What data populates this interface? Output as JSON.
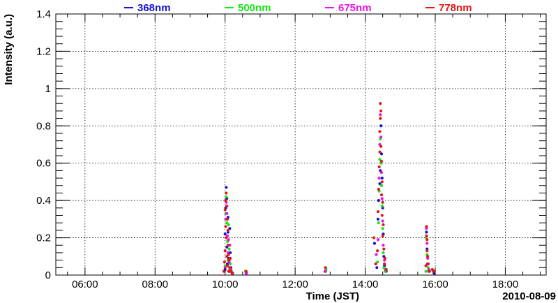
{
  "chart_data": {
    "type": "scatter",
    "title": "",
    "xlabel": "Time (JST)",
    "ylabel": "Intensity (a.u.)",
    "date_label": "2010-08-09",
    "xlim": [
      "05:10",
      "19:10"
    ],
    "ylim": [
      0,
      1.4
    ],
    "grid": true,
    "legend_position": "top",
    "x_ticks": [
      "06:00",
      "08:00",
      "10:00",
      "12:00",
      "14:00",
      "16:00",
      "18:00"
    ],
    "y_ticks": [
      "0",
      "0.2",
      "0.4",
      "0.6",
      "0.8",
      "1",
      "1.2",
      "1.4"
    ],
    "series": [
      {
        "name": "368nm",
        "color": "#1414d2",
        "points": [
          [
            "10:00",
            0.03
          ],
          [
            "10:00",
            0.22
          ],
          [
            "10:01",
            0.36
          ],
          [
            "10:02",
            0.47
          ],
          [
            "10:03",
            0.41
          ],
          [
            "10:03",
            0.15
          ],
          [
            "10:04",
            0.06
          ],
          [
            "10:05",
            0.31
          ],
          [
            "10:05",
            0.23
          ],
          [
            "10:06",
            0.09
          ],
          [
            "10:07",
            0.02
          ],
          [
            "10:08",
            0.25
          ],
          [
            "10:09",
            0.12
          ],
          [
            "10:10",
            0.04
          ],
          [
            "10:12",
            0.01
          ],
          [
            "10:36",
            0.01
          ],
          [
            "12:52",
            0.02
          ],
          [
            "14:16",
            0.17
          ],
          [
            "14:20",
            0.04
          ],
          [
            "14:22",
            0.3
          ],
          [
            "14:23",
            0.4
          ],
          [
            "14:25",
            0.49
          ],
          [
            "14:26",
            0.56
          ],
          [
            "14:27",
            0.8
          ],
          [
            "14:28",
            0.65
          ],
          [
            "14:29",
            0.52
          ],
          [
            "14:30",
            0.36
          ],
          [
            "14:31",
            0.22
          ],
          [
            "14:32",
            0.1
          ],
          [
            "14:33",
            0.05
          ],
          [
            "14:36",
            0.02
          ],
          [
            "15:45",
            0.23
          ],
          [
            "15:46",
            0.14
          ],
          [
            "15:47",
            0.06
          ],
          [
            "15:50",
            0.02
          ],
          [
            "15:58",
            0.01
          ]
        ]
      },
      {
        "name": "500nm",
        "color": "#14e614",
        "points": [
          [
            "10:00",
            0.05
          ],
          [
            "10:01",
            0.33
          ],
          [
            "10:02",
            0.42
          ],
          [
            "10:03",
            0.28
          ],
          [
            "10:04",
            0.18
          ],
          [
            "10:05",
            0.08
          ],
          [
            "10:06",
            0.27
          ],
          [
            "10:07",
            0.14
          ],
          [
            "10:08",
            0.03
          ],
          [
            "10:09",
            0.06
          ],
          [
            "10:11",
            0.02
          ],
          [
            "10:35",
            0.02
          ],
          [
            "12:53",
            0.03
          ],
          [
            "14:21",
            0.07
          ],
          [
            "14:23",
            0.28
          ],
          [
            "14:24",
            0.45
          ],
          [
            "14:25",
            0.62
          ],
          [
            "14:26",
            0.73
          ],
          [
            "14:27",
            0.6
          ],
          [
            "14:28",
            0.48
          ],
          [
            "14:29",
            0.37
          ],
          [
            "14:30",
            0.25
          ],
          [
            "14:31",
            0.12
          ],
          [
            "14:32",
            0.04
          ],
          [
            "14:34",
            0.02
          ],
          [
            "15:44",
            0.02
          ],
          [
            "15:45",
            0.2
          ],
          [
            "15:46",
            0.11
          ],
          [
            "15:48",
            0.04
          ],
          [
            "15:56",
            0.02
          ]
        ]
      },
      {
        "name": "675nm",
        "color": "#e614e6",
        "points": [
          [
            "10:00",
            0.04
          ],
          [
            "10:01",
            0.3
          ],
          [
            "10:02",
            0.39
          ],
          [
            "10:03",
            0.33
          ],
          [
            "10:04",
            0.21
          ],
          [
            "10:05",
            0.12
          ],
          [
            "10:06",
            0.19
          ],
          [
            "10:07",
            0.07
          ],
          [
            "10:08",
            0.16
          ],
          [
            "10:10",
            0.03
          ],
          [
            "10:37",
            0.01
          ],
          [
            "12:51",
            0.02
          ],
          [
            "14:19",
            0.11
          ],
          [
            "14:22",
            0.19
          ],
          [
            "14:24",
            0.52
          ],
          [
            "14:25",
            0.7
          ],
          [
            "14:26",
            0.86
          ],
          [
            "14:27",
            0.74
          ],
          [
            "14:28",
            0.55
          ],
          [
            "14:29",
            0.41
          ],
          [
            "14:30",
            0.29
          ],
          [
            "14:31",
            0.16
          ],
          [
            "14:33",
            0.08
          ],
          [
            "14:35",
            0.03
          ],
          [
            "15:45",
            0.25
          ],
          [
            "15:46",
            0.17
          ],
          [
            "15:47",
            0.09
          ],
          [
            "15:49",
            0.03
          ],
          [
            "15:57",
            0.02
          ]
        ]
      },
      {
        "name": "778nm",
        "color": "#e61414",
        "points": [
          [
            "09:58",
            0.02
          ],
          [
            "09:59",
            0.07
          ],
          [
            "10:00",
            0.13
          ],
          [
            "10:00",
            0.35
          ],
          [
            "10:01",
            0.4
          ],
          [
            "10:01",
            0.26
          ],
          [
            "10:02",
            0.44
          ],
          [
            "10:02",
            0.2
          ],
          [
            "10:03",
            0.37
          ],
          [
            "10:03",
            0.1
          ],
          [
            "10:04",
            0.3
          ],
          [
            "10:04",
            0.05
          ],
          [
            "10:05",
            0.24
          ],
          [
            "10:05",
            0.16
          ],
          [
            "10:06",
            0.11
          ],
          [
            "10:06",
            0.02
          ],
          [
            "10:07",
            0.08
          ],
          [
            "10:08",
            0.04
          ],
          [
            "10:09",
            0.09
          ],
          [
            "10:10",
            0.02
          ],
          [
            "10:13",
            0.01
          ],
          [
            "10:36",
            0.02
          ],
          [
            "12:52",
            0.04
          ],
          [
            "14:15",
            0.2
          ],
          [
            "14:18",
            0.06
          ],
          [
            "14:21",
            0.13
          ],
          [
            "14:22",
            0.34
          ],
          [
            "14:23",
            0.46
          ],
          [
            "14:24",
            0.58
          ],
          [
            "14:25",
            0.77
          ],
          [
            "14:25",
            0.66
          ],
          [
            "14:26",
            0.92
          ],
          [
            "14:26",
            0.84
          ],
          [
            "14:27",
            0.69
          ],
          [
            "14:27",
            0.88
          ],
          [
            "14:28",
            0.61
          ],
          [
            "14:28",
            0.43
          ],
          [
            "14:29",
            0.5
          ],
          [
            "14:29",
            0.32
          ],
          [
            "14:30",
            0.39
          ],
          [
            "14:30",
            0.21
          ],
          [
            "14:31",
            0.27
          ],
          [
            "14:32",
            0.14
          ],
          [
            "14:33",
            0.06
          ],
          [
            "14:34",
            0.09
          ],
          [
            "14:36",
            0.03
          ],
          [
            "15:44",
            0.05
          ],
          [
            "15:45",
            0.26
          ],
          [
            "15:45",
            0.21
          ],
          [
            "15:46",
            0.19
          ],
          [
            "15:46",
            0.13
          ],
          [
            "15:47",
            0.1
          ],
          [
            "15:48",
            0.06
          ],
          [
            "15:49",
            0.02
          ],
          [
            "15:55",
            0.03
          ],
          [
            "15:58",
            0.02
          ]
        ]
      }
    ]
  }
}
